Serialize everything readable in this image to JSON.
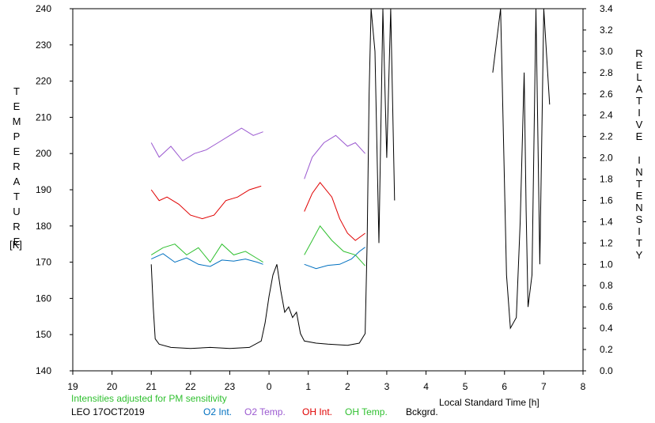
{
  "chart_data": {
    "type": "line",
    "title": "",
    "ylabel_left": "TEMPERATURE",
    "ylabel_left_unit": "[K]",
    "ylabel_right": "RELATIVE INTENSITY",
    "xlabel": "Local Standard Time [h]",
    "note": "Intensities adjusted for PM sensitivity",
    "station": "LEO 17OCT2019",
    "xlim": [
      19,
      32
    ],
    "x_tick_labels": [
      "19",
      "20",
      "21",
      "22",
      "23",
      "0",
      "1",
      "2",
      "3",
      "4",
      "5",
      "6",
      "7",
      "8"
    ],
    "ylim_left": [
      140,
      240
    ],
    "y_left_ticks": [
      140,
      150,
      160,
      170,
      180,
      190,
      200,
      210,
      220,
      230,
      240
    ],
    "ylim_right": [
      0.0,
      3.4
    ],
    "y_right_tick_labels": [
      "0.0",
      "0.2",
      "0.4",
      "0.6",
      "0.8",
      "1.0",
      "1.2",
      "1.4",
      "1.6",
      "1.8",
      "2.0",
      "2.2",
      "2.4",
      "2.6",
      "2.8",
      "3.0",
      "3.2",
      "3.4"
    ],
    "legend_position": "bottom",
    "series": [
      {
        "name": "O2 Int.",
        "color": "#0070c0",
        "axis": "right",
        "segments": [
          [
            [
              21.0,
              1.05
            ],
            [
              21.3,
              1.1
            ],
            [
              21.6,
              1.02
            ],
            [
              21.9,
              1.06
            ],
            [
              22.2,
              1.0
            ],
            [
              22.5,
              0.98
            ],
            [
              22.8,
              1.04
            ],
            [
              23.1,
              1.03
            ],
            [
              23.4,
              1.05
            ],
            [
              23.7,
              1.02
            ],
            [
              23.85,
              1.0
            ]
          ],
          [
            [
              24.9,
              1.0
            ],
            [
              25.2,
              0.96
            ],
            [
              25.5,
              0.99
            ],
            [
              25.8,
              1.0
            ],
            [
              26.1,
              1.05
            ],
            [
              26.3,
              1.12
            ],
            [
              26.45,
              1.16
            ]
          ]
        ]
      },
      {
        "name": "O2 Temp.",
        "color": "#9b59d0",
        "axis": "left",
        "segments": [
          [
            [
              21.0,
              203
            ],
            [
              21.2,
              199
            ],
            [
              21.5,
              202
            ],
            [
              21.8,
              198
            ],
            [
              22.1,
              200
            ],
            [
              22.4,
              201
            ],
            [
              22.7,
              203
            ],
            [
              23.0,
              205
            ],
            [
              23.3,
              207
            ],
            [
              23.6,
              205
            ],
            [
              23.85,
              206
            ]
          ],
          [
            [
              24.9,
              193
            ],
            [
              25.1,
              199
            ],
            [
              25.4,
              203
            ],
            [
              25.7,
              205
            ],
            [
              26.0,
              202
            ],
            [
              26.2,
              203
            ],
            [
              26.45,
              200
            ]
          ]
        ]
      },
      {
        "name": "OH Int.",
        "color": "#e00000",
        "axis": "left",
        "segments": [
          [
            [
              21.0,
              190
            ],
            [
              21.2,
              187
            ],
            [
              21.4,
              188
            ],
            [
              21.7,
              186
            ],
            [
              22.0,
              183
            ],
            [
              22.3,
              182
            ],
            [
              22.6,
              183
            ],
            [
              22.9,
              187
            ],
            [
              23.2,
              188
            ],
            [
              23.5,
              190
            ],
            [
              23.8,
              191
            ]
          ],
          [
            [
              24.9,
              184
            ],
            [
              25.1,
              189
            ],
            [
              25.3,
              192
            ],
            [
              25.6,
              188
            ],
            [
              25.8,
              182
            ],
            [
              26.0,
              178
            ],
            [
              26.2,
              176
            ],
            [
              26.45,
              178
            ]
          ]
        ]
      },
      {
        "name": "OH Temp.",
        "color": "#30c030",
        "axis": "left",
        "segments": [
          [
            [
              21.0,
              172
            ],
            [
              21.3,
              174
            ],
            [
              21.6,
              175
            ],
            [
              21.9,
              172
            ],
            [
              22.2,
              174
            ],
            [
              22.5,
              170
            ],
            [
              22.8,
              175
            ],
            [
              23.1,
              172
            ],
            [
              23.4,
              173
            ],
            [
              23.7,
              171
            ],
            [
              23.85,
              170
            ]
          ],
          [
            [
              24.9,
              172
            ],
            [
              25.1,
              176
            ],
            [
              25.3,
              180
            ],
            [
              25.6,
              176
            ],
            [
              25.9,
              173
            ],
            [
              26.2,
              172
            ],
            [
              26.45,
              169
            ]
          ]
        ]
      },
      {
        "name": "Bckgrd.",
        "color": "#000000",
        "axis": "right",
        "segments": [
          [
            [
              21.0,
              1.0
            ],
            [
              21.05,
              0.6
            ],
            [
              21.1,
              0.3
            ],
            [
              21.2,
              0.25
            ],
            [
              21.5,
              0.22
            ],
            [
              22.0,
              0.21
            ],
            [
              22.5,
              0.22
            ],
            [
              23.0,
              0.21
            ],
            [
              23.5,
              0.22
            ],
            [
              23.8,
              0.28
            ],
            [
              23.9,
              0.45
            ],
            [
              24.0,
              0.7
            ],
            [
              24.1,
              0.9
            ],
            [
              24.2,
              1.0
            ],
            [
              24.3,
              0.75
            ],
            [
              24.4,
              0.55
            ],
            [
              24.5,
              0.6
            ],
            [
              24.6,
              0.5
            ],
            [
              24.7,
              0.55
            ],
            [
              24.8,
              0.35
            ],
            [
              24.9,
              0.28
            ],
            [
              25.2,
              0.26
            ],
            [
              25.5,
              0.25
            ],
            [
              26.0,
              0.24
            ],
            [
              26.3,
              0.26
            ],
            [
              26.45,
              0.35
            ],
            [
              26.5,
              1.2
            ],
            [
              26.55,
              2.6
            ],
            [
              26.6,
              3.4
            ]
          ],
          [
            [
              26.6,
              3.4
            ],
            [
              26.7,
              3.0
            ],
            [
              26.8,
              1.2
            ],
            [
              26.9,
              3.4
            ],
            [
              27.0,
              2.0
            ],
            [
              27.1,
              3.4
            ],
            [
              27.2,
              1.6
            ]
          ],
          [
            [
              29.7,
              2.8
            ],
            [
              29.9,
              3.4
            ],
            [
              30.05,
              0.9
            ],
            [
              30.15,
              0.4
            ],
            [
              30.3,
              0.5
            ],
            [
              30.4,
              1.4
            ],
            [
              30.5,
              2.8
            ],
            [
              30.55,
              1.5
            ],
            [
              30.6,
              0.6
            ],
            [
              30.7,
              0.9
            ],
            [
              30.8,
              3.4
            ],
            [
              30.9,
              1.0
            ],
            [
              31.0,
              3.4
            ],
            [
              31.1,
              2.8
            ],
            [
              31.15,
              2.5
            ]
          ]
        ]
      }
    ]
  }
}
